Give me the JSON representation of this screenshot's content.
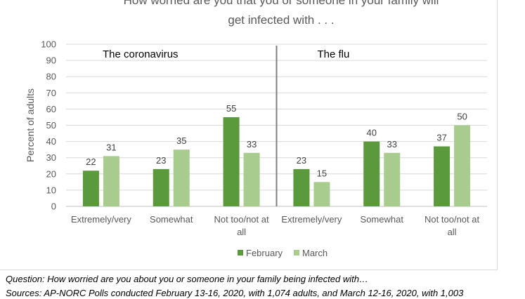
{
  "chart_data": {
    "type": "bar",
    "title_lines": [
      "How worried are you that you or someone in your family will",
      "get infected with . . ."
    ],
    "ylabel": "Percent of adults",
    "ylim": [
      0,
      100
    ],
    "yticks": [
      0,
      10,
      20,
      30,
      40,
      50,
      60,
      70,
      80,
      90,
      100
    ],
    "panels": [
      {
        "label": "The coronavirus",
        "categories": [
          [
            "Extremely/very"
          ],
          [
            "Somewhat"
          ],
          [
            "Not too/not at",
            "all"
          ]
        ],
        "series": [
          {
            "name": "February",
            "values": [
              22,
              23,
              55
            ]
          },
          {
            "name": "March",
            "values": [
              31,
              35,
              33
            ]
          }
        ]
      },
      {
        "label": "The flu",
        "categories": [
          [
            "Extremely/very"
          ],
          [
            "Somewhat"
          ],
          [
            "Not too/not at",
            "all"
          ]
        ],
        "series": [
          {
            "name": "February",
            "values": [
              23,
              40,
              37
            ]
          },
          {
            "name": "March",
            "values": [
              15,
              33,
              50
            ]
          }
        ]
      }
    ],
    "legend": {
      "placement": "bottom",
      "items": [
        {
          "name": "February",
          "color": "#5b9a3c"
        },
        {
          "name": "March",
          "color": "#a8cc8e"
        }
      ]
    },
    "grid": true
  },
  "notes": {
    "question": "Question: How worried are you about you or someone in your family being infected with…",
    "sources": "Sources: AP-NORC Polls conducted February 13-16, 2020, with 1,074 adults, and March 12-16, 2020, with 1,003"
  }
}
